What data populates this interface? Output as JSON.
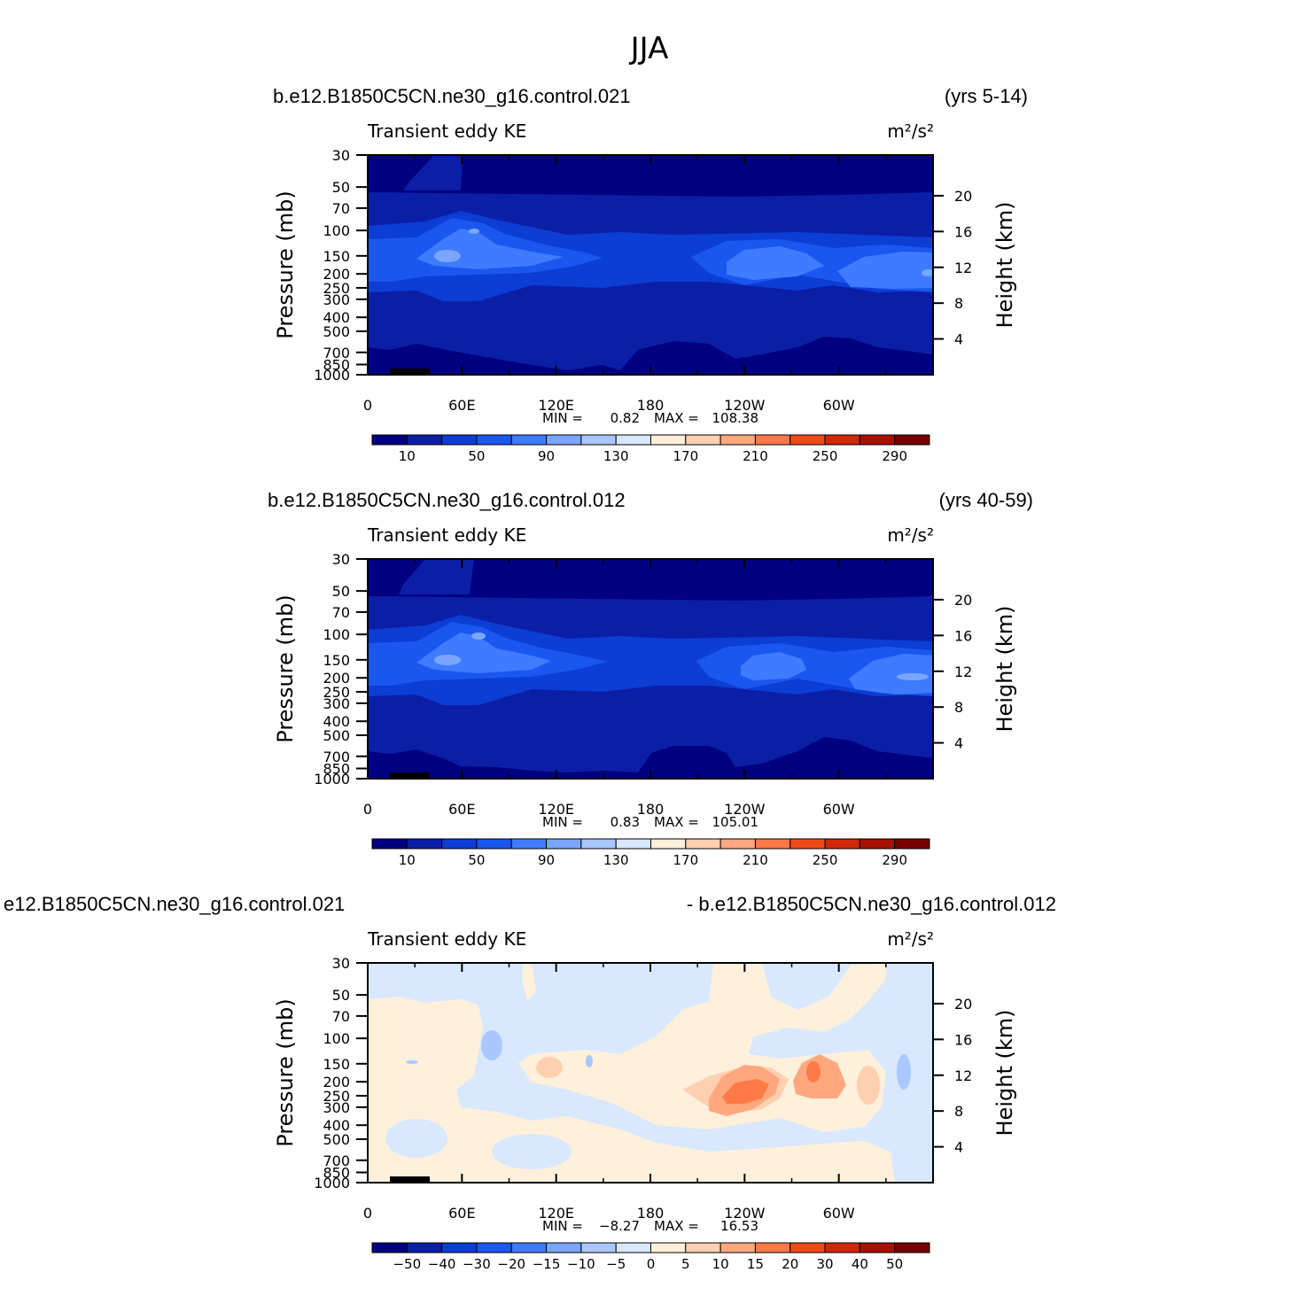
{
  "title": "JJA",
  "chart_data": [
    {
      "type": "heatmap",
      "case": "b.e12.B1850C5CN.ne30_g16.control.021",
      "years": "(yrs 5-14)",
      "title": "Transient eddy KE",
      "units": "m²/s²",
      "ylabel": "Pressure (mb)",
      "y2label": "Height (km)",
      "xticks": [
        "0",
        "60E",
        "120E",
        "180",
        "120W",
        "60W"
      ],
      "yticks": [
        "30",
        "50",
        "70",
        "100",
        "150",
        "200",
        "250",
        "300",
        "400",
        "500",
        "700",
        "850",
        "1000"
      ],
      "y2ticks": [
        "20",
        "16",
        "12",
        "8",
        "4"
      ],
      "min_label": "MIN =",
      "min": "0.82",
      "max_label": "MAX =",
      "max": "108.38",
      "colorbar_labels": [
        "10",
        "50",
        "90",
        "130",
        "170",
        "210",
        "250",
        "290"
      ],
      "colors": [
        "#000080",
        "#0b1fa6",
        "#0c3dd4",
        "#1a57f0",
        "#3f7bff",
        "#7aa6ff",
        "#aac7ff",
        "#d8e8ff",
        "#fff0dc",
        "#ffd0b0",
        "#ffa880",
        "#ff7a48",
        "#f04a18",
        "#d02808",
        "#a81000",
        "#780000"
      ]
    },
    {
      "type": "heatmap",
      "case": "b.e12.B1850C5CN.ne30_g16.control.012",
      "years": "(yrs 40-59)",
      "title": "Transient eddy KE",
      "units": "m²/s²",
      "ylabel": "Pressure (mb)",
      "y2label": "Height (km)",
      "xticks": [
        "0",
        "60E",
        "120E",
        "180",
        "120W",
        "60W"
      ],
      "yticks": [
        "30",
        "50",
        "70",
        "100",
        "150",
        "200",
        "250",
        "300",
        "400",
        "500",
        "700",
        "850",
        "1000"
      ],
      "y2ticks": [
        "20",
        "16",
        "12",
        "8",
        "4"
      ],
      "min_label": "MIN =",
      "min": "0.83",
      "max_label": "MAX =",
      "max": "105.01",
      "colorbar_labels": [
        "10",
        "50",
        "90",
        "130",
        "170",
        "210",
        "250",
        "290"
      ],
      "colors": [
        "#000080",
        "#0b1fa6",
        "#0c3dd4",
        "#1a57f0",
        "#3f7bff",
        "#7aa6ff",
        "#aac7ff",
        "#d8e8ff",
        "#fff0dc",
        "#ffd0b0",
        "#ffa880",
        "#ff7a48",
        "#f04a18",
        "#d02808",
        "#a81000",
        "#780000"
      ]
    },
    {
      "type": "heatmap",
      "case": "e12.B1850C5CN.ne30_g16.control.021",
      "years": "- b.e12.B1850C5CN.ne30_g16.control.012",
      "title": "Transient eddy KE",
      "units": "m²/s²",
      "ylabel": "Pressure (mb)",
      "y2label": "Height (km)",
      "xticks": [
        "0",
        "60E",
        "120E",
        "180",
        "120W",
        "60W"
      ],
      "yticks": [
        "30",
        "50",
        "70",
        "100",
        "150",
        "200",
        "250",
        "300",
        "400",
        "500",
        "700",
        "850",
        "1000"
      ],
      "y2ticks": [
        "20",
        "16",
        "12",
        "8",
        "4"
      ],
      "min_label": "MIN =",
      "min": "−8.27",
      "max_label": "MAX =",
      "max": "16.53",
      "colorbar_labels": [
        "−50",
        "−40",
        "−30",
        "−20",
        "−15",
        "−10",
        "−5",
        "0",
        "5",
        "10",
        "15",
        "20",
        "30",
        "40",
        "50"
      ],
      "colors": [
        "#000080",
        "#0b1fa6",
        "#0c3dd4",
        "#1a57f0",
        "#3f7bff",
        "#7aa6ff",
        "#aac7ff",
        "#d8e8ff",
        "#fff0dc",
        "#ffd0b0",
        "#ffa880",
        "#ff7a48",
        "#f04a18",
        "#d02808",
        "#a81000",
        "#780000"
      ]
    }
  ]
}
